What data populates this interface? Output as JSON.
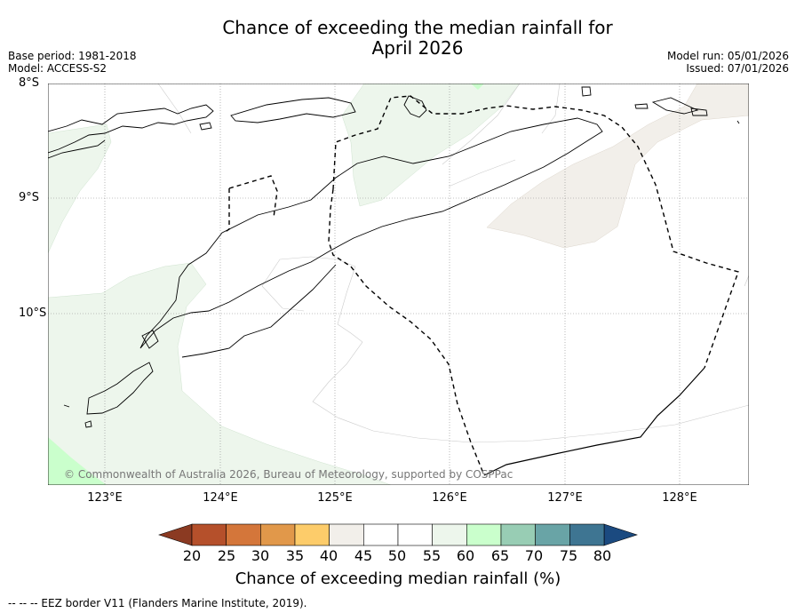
{
  "title": {
    "line1": "Chance of exceeding the median rainfall for",
    "line2": "April 2026"
  },
  "meta_left": {
    "base_period": "Base period: 1981-2018",
    "model": "Model: ACCESS-S2"
  },
  "meta_right": {
    "model_run": "Model run: 05/01/2026",
    "issued": "Issued: 07/01/2026"
  },
  "map": {
    "lat_labels": [
      "8°S",
      "9°S",
      "10°S"
    ],
    "lon_labels": [
      "123°E",
      "124°E",
      "125°E",
      "126°E",
      "127°E",
      "128°E"
    ],
    "copyright": "© Commonwealth of Australia 2026, Bureau of Meteorology, supported by COSPPac"
  },
  "colorbar": {
    "ticks": [
      "20",
      "25",
      "30",
      "35",
      "40",
      "45",
      "50",
      "55",
      "60",
      "65",
      "70",
      "75",
      "80"
    ],
    "colors": [
      "#b5502b",
      "#d4763a",
      "#e1984a",
      "#fdcc6a",
      "#f2efea",
      "#ffffff",
      "#ffffff",
      "#edf6ec",
      "#caffcc",
      "#98cdb4",
      "#69a4a6",
      "#3e7592"
    ],
    "low_extend_color": "#8b3a22",
    "high_extend_color": "#1b4a80",
    "label": "Chance of exceeding median rainfall (%)"
  },
  "footnote": "--  --  -- EEZ border V11 (Flanders Marine Institute, 2019)."
}
